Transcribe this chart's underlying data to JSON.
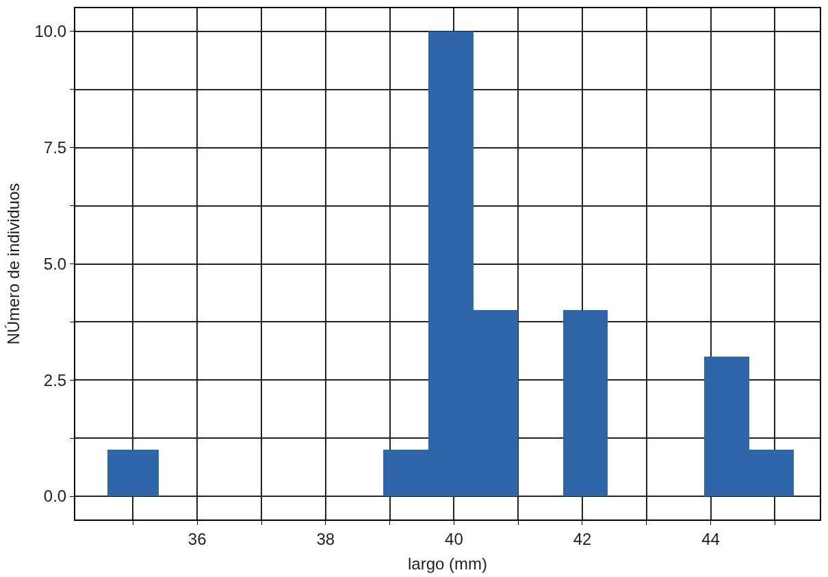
{
  "chart_data": {
    "type": "histogram",
    "xlabel": "largo (mm)",
    "ylabel": "NÚmero de individuos",
    "bins": [
      34.6,
      35.4,
      38.9,
      39.6,
      40.3,
      41.0,
      41.7,
      42.4,
      43.9,
      44.6,
      45.3
    ],
    "values": [
      1,
      0,
      1,
      10,
      4,
      0,
      4,
      0,
      3,
      1
    ],
    "color": "#2f66a9",
    "xlim": [
      34.1,
      45.7
    ],
    "xticks": [
      {
        "value": 35,
        "label": null
      },
      36,
      {
        "value": 37,
        "label": null
      },
      38,
      {
        "value": 39,
        "label": null
      },
      40,
      {
        "value": 41,
        "label": null
      },
      42,
      {
        "value": 43,
        "label": null
      },
      44,
      {
        "value": 45,
        "label": null
      }
    ],
    "ylim": [
      -0.5,
      10.5
    ],
    "yticks": [
      {
        "value": 0,
        "label": "0.0"
      },
      {
        "value": 1.25,
        "label": null
      },
      {
        "value": 2.5,
        "label": "2.5"
      },
      {
        "value": 3.75,
        "label": null
      },
      {
        "value": 5,
        "label": "5.0"
      },
      {
        "value": 6.25,
        "label": null
      },
      {
        "value": 7.5,
        "label": "7.5"
      },
      {
        "value": 8.75,
        "label": null
      },
      {
        "value": 10,
        "label": "10.0"
      }
    ],
    "grid": true
  }
}
